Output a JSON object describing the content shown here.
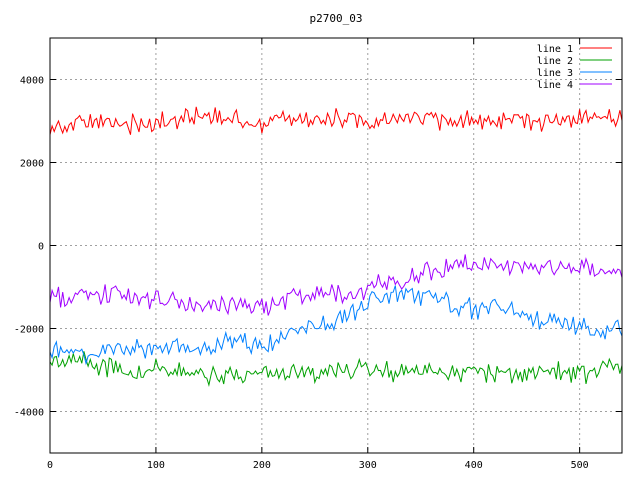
{
  "chart_data": {
    "type": "line",
    "title": "p2700_03",
    "xlabel": "",
    "ylabel": "",
    "xlim": [
      0,
      540
    ],
    "ylim": [
      -5000,
      5000
    ],
    "xticks": [
      0,
      100,
      200,
      300,
      400,
      500
    ],
    "yticks": [
      -4000,
      -2000,
      0,
      2000,
      4000
    ],
    "grid": true,
    "legend_position": "top-right",
    "x": [
      0,
      20,
      40,
      60,
      80,
      100,
      120,
      140,
      160,
      180,
      200,
      220,
      240,
      260,
      280,
      300,
      320,
      340,
      360,
      380,
      400,
      420,
      440,
      460,
      480,
      500,
      520,
      540
    ],
    "series": [
      {
        "name": "line 1",
        "color": "#ff0000",
        "values": [
          2850,
          2900,
          2950,
          3000,
          2950,
          2900,
          3000,
          3150,
          3050,
          3000,
          2950,
          3050,
          3100,
          3000,
          3050,
          2950,
          3000,
          3100,
          3050,
          2950,
          3000,
          3100,
          3050,
          3000,
          3050,
          3000,
          3100,
          3050
        ]
      },
      {
        "name": "line 2",
        "color": "#00a000",
        "values": [
          -2800,
          -2750,
          -2850,
          -2950,
          -3050,
          -3000,
          -3100,
          -3000,
          -3150,
          -3100,
          -3050,
          -3050,
          -3000,
          -3100,
          -3000,
          -2900,
          -3050,
          -3000,
          -3100,
          -3050,
          -3000,
          -3050,
          -3150,
          -3050,
          -3000,
          -3100,
          -3050,
          -2800
        ]
      },
      {
        "name": "line 3",
        "color": "#0080ff",
        "values": [
          -2500,
          -2550,
          -2600,
          -2500,
          -2450,
          -2550,
          -2400,
          -2550,
          -2400,
          -2300,
          -2450,
          -2200,
          -2000,
          -1900,
          -1700,
          -1400,
          -1200,
          -1150,
          -1250,
          -1500,
          -1500,
          -1450,
          -1600,
          -1750,
          -1800,
          -1950,
          -2050,
          -2050
        ]
      },
      {
        "name": "line 4",
        "color": "#a000ff",
        "values": [
          -1250,
          -1300,
          -1200,
          -1150,
          -1300,
          -1350,
          -1400,
          -1450,
          -1500,
          -1400,
          -1500,
          -1350,
          -1200,
          -1200,
          -1150,
          -1050,
          -950,
          -750,
          -600,
          -450,
          -500,
          -500,
          -450,
          -500,
          -450,
          -550,
          -600,
          -600
        ]
      }
    ]
  }
}
